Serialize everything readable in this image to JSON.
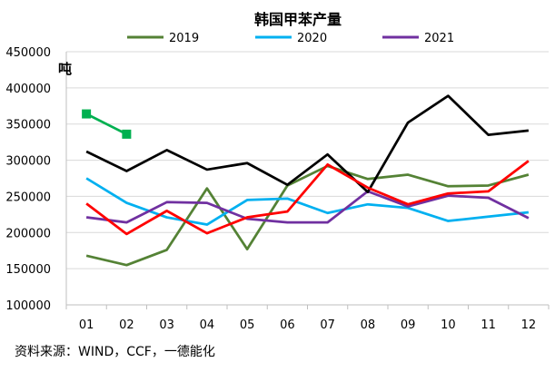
{
  "chart_data": {
    "type": "line",
    "title": "韩国甲苯产量",
    "unit_label": "吨",
    "categories": [
      "01",
      "02",
      "03",
      "04",
      "05",
      "06",
      "07",
      "08",
      "09",
      "10",
      "11",
      "12"
    ],
    "ylim": [
      100000,
      450000
    ],
    "yticks": [
      100000,
      150000,
      200000,
      250000,
      300000,
      350000,
      400000,
      450000
    ],
    "ytick_labels": [
      "100000",
      "150000",
      "200000",
      "250000",
      "300000",
      "350000",
      "400000",
      "450000"
    ],
    "grid": "horizontal",
    "legend_position": "top",
    "series": [
      {
        "name": "2019",
        "color": "#548235",
        "values": [
          168000,
          155000,
          176000,
          261000,
          177000,
          265000,
          292000,
          274000,
          280000,
          264000,
          265000,
          280000
        ]
      },
      {
        "name": "2020",
        "color": "#00B0F0",
        "values": [
          275000,
          241000,
          221000,
          211000,
          245000,
          247000,
          227000,
          239000,
          234000,
          216000,
          222000,
          228000
        ]
      },
      {
        "name": "2021",
        "color": "#7030A0",
        "values": [
          221000,
          214000,
          242000,
          241000,
          219000,
          214000,
          214000,
          257000,
          236000,
          251000,
          248000,
          220000
        ]
      },
      {
        "name": "",
        "color": "#000000",
        "values": [
          312000,
          285000,
          314000,
          287000,
          296000,
          266000,
          308000,
          256000,
          352000,
          389000,
          335000,
          341000
        ]
      },
      {
        "name": "",
        "color": "#FF0000",
        "values": [
          240000,
          198000,
          230000,
          199000,
          221000,
          229000,
          294000,
          262000,
          239000,
          254000,
          257000,
          299000
        ]
      },
      {
        "name": "",
        "color": "#00B050",
        "marker": "square",
        "values": [
          364000,
          336000,
          null,
          null,
          null,
          null,
          null,
          null,
          null,
          null,
          null,
          null
        ]
      }
    ]
  },
  "source": "资料来源：WIND，CCF，一德能化"
}
